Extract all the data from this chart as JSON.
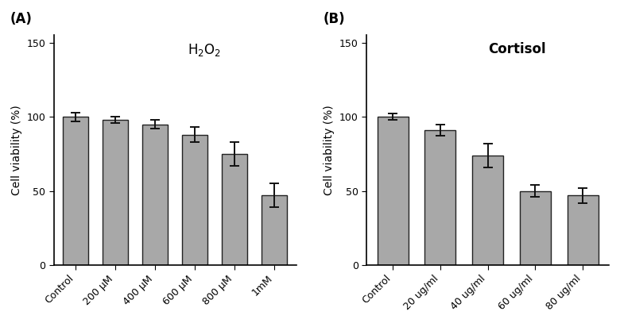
{
  "panel_A": {
    "label": "(A)",
    "title": "H$_2$O$_2$",
    "title_bold": false,
    "categories": [
      "Control",
      "200 μM",
      "400 μM",
      "600 μM",
      "800 μM",
      "1mM"
    ],
    "values": [
      100,
      98,
      95,
      88,
      75,
      47
    ],
    "errors": [
      3,
      2,
      3,
      5,
      8,
      8
    ],
    "ylabel": "Cell viability (%)",
    "ylim": [
      0,
      155
    ],
    "yticks": [
      0,
      50,
      100,
      150
    ]
  },
  "panel_B": {
    "label": "(B)",
    "title": "Cortisol",
    "title_bold": true,
    "categories": [
      "Control",
      "20 ug/ml",
      "40 ug/ml",
      "60 ug/ml",
      "80 ug/ml"
    ],
    "values": [
      100,
      91,
      74,
      50,
      47
    ],
    "errors": [
      2,
      4,
      8,
      4,
      5
    ],
    "ylabel": "Cell viability (%)",
    "ylim": [
      0,
      155
    ],
    "yticks": [
      0,
      50,
      100,
      150
    ]
  },
  "bar_color": "#a8a8a8",
  "bar_edgecolor": "#222222",
  "bar_linewidth": 1.0,
  "bar_width": 0.65,
  "capsize": 4,
  "ecolor": "#111111",
  "elinewidth": 1.4,
  "capthick": 1.4,
  "tick_label_fontsize": 9,
  "axis_label_fontsize": 10,
  "title_fontsize": 12,
  "panel_label_fontsize": 12,
  "ylabel_color": "#000000",
  "background_color": "#ffffff"
}
